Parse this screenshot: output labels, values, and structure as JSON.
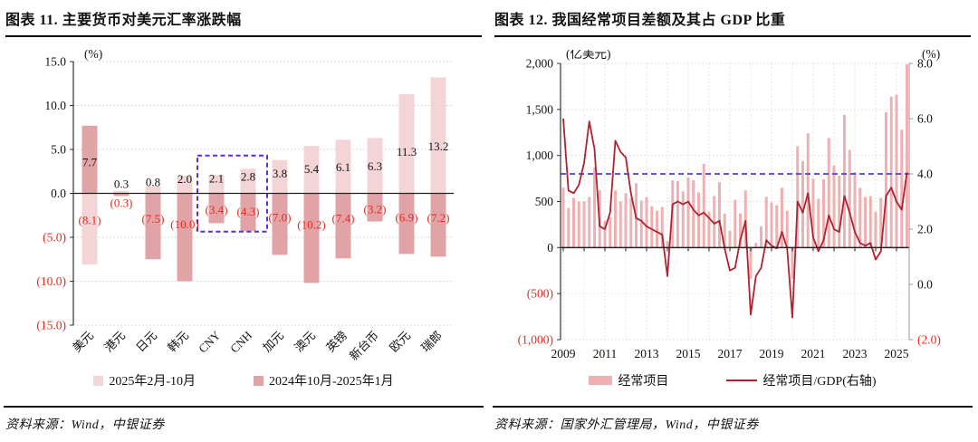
{
  "chart_data": [
    {
      "type": "bar",
      "title": "图表 11. 主要货币对美元汇率涨跌幅",
      "unit": "(%)",
      "categories": [
        "美元",
        "港元",
        "日元",
        "韩元",
        "CNY",
        "CNH",
        "加元",
        "澳元",
        "英镑",
        "新台币",
        "欧元",
        "瑞郎"
      ],
      "series": [
        {
          "name": "2025年2月-10月",
          "color": "#f4d5d7",
          "values": [
            -8.1,
            0.3,
            0.8,
            2.0,
            2.1,
            2.8,
            3.8,
            5.4,
            6.1,
            6.3,
            11.3,
            13.2
          ]
        },
        {
          "name": "2024年10月-2025年1月",
          "color": "#e2a3a7",
          "values": [
            7.7,
            -0.3,
            -7.5,
            -10.0,
            -3.4,
            -4.3,
            -7.0,
            -10.2,
            -7.4,
            -3.2,
            -6.9,
            -7.2
          ]
        }
      ],
      "ylim": [
        -15,
        15
      ],
      "yticks": [
        15,
        10,
        5,
        0,
        -5,
        -10,
        -15
      ],
      "ytick_labels": [
        "15.0",
        "10.0",
        "5.0",
        "0.0",
        "(5.0)",
        "(10.0)",
        "(15.0)"
      ],
      "grid": "horizontal-dotted",
      "legend_position": "bottom",
      "highlight_box": {
        "from_category": "CNY",
        "to_category": "CNH",
        "color": "#5b2ed6"
      },
      "colors": {
        "negative_text": "#e8281e",
        "axis": "#333333",
        "grid": "#dfc6c6"
      },
      "source": "资料来源：Wind，中银证券"
    },
    {
      "type": "bar+line",
      "title": "图表 12. 我国经常项目差额及其占 GDP 比重",
      "left_axis": {
        "unit": "(亿美元)",
        "lim": [
          -1000,
          2000
        ],
        "ticks": [
          2000,
          1500,
          1000,
          500,
          0,
          -500,
          -1000
        ],
        "tick_labels": [
          "2,000",
          "1,500",
          "1,000",
          "500",
          "0",
          "(500)",
          "(1,000)"
        ]
      },
      "right_axis": {
        "unit": "(%)",
        "lim": [
          -2,
          8
        ],
        "ticks": [
          8,
          6,
          4,
          2,
          0,
          -2
        ],
        "tick_labels": [
          "8.0",
          "6.0",
          "4.0",
          "2.0",
          "0.0",
          "(2.0)"
        ]
      },
      "x": {
        "start": "2009Q1",
        "freq": "quarterly",
        "tick_labels": [
          "2009",
          "2011",
          "2013",
          "2015",
          "2017",
          "2019",
          "2021",
          "2023",
          "2025"
        ]
      },
      "bars": {
        "name": "经常项目",
        "axis": "left",
        "color": "#efb0b3",
        "values": [
          650,
          430,
          540,
          500,
          500,
          550,
          870,
          620,
          290,
          330,
          620,
          500,
          590,
          540,
          700,
          510,
          550,
          450,
          400,
          440,
          70,
          730,
          720,
          610,
          760,
          730,
          600,
          910,
          390,
          560,
          710,
          370,
          180,
          520,
          370,
          620,
          -340,
          50,
          230,
          550,
          490,
          460,
          650,
          400,
          -340,
          1100,
          940,
          1240,
          750,
          530,
          740,
          1190,
          890,
          780,
          1440,
          1060,
          820,
          650,
          550,
          560,
          390,
          540,
          1470,
          1640,
          1660,
          1280,
          1990
        ]
      },
      "line": {
        "name": "经常项目/GDP(右轴)",
        "axis": "right",
        "color": "#b0222f",
        "values": [
          6.0,
          3.4,
          3.3,
          3.6,
          4.4,
          5.9,
          4.9,
          2.1,
          2.0,
          2.6,
          5.2,
          4.8,
          4.6,
          3.3,
          2.4,
          2.3,
          2.1,
          2.0,
          1.9,
          1.8,
          0.3,
          2.9,
          3.0,
          2.9,
          3.0,
          2.7,
          2.5,
          2.6,
          2.4,
          2.2,
          2.3,
          1.3,
          0.5,
          0.6,
          1.6,
          2.3,
          -1.1,
          0.3,
          0.6,
          1.6,
          1.4,
          1.3,
          1.9,
          1.3,
          -1.2,
          3.0,
          2.6,
          3.3,
          1.7,
          1.2,
          1.6,
          2.5,
          2.0,
          1.9,
          3.2,
          2.6,
          1.9,
          1.5,
          1.4,
          1.5,
          0.9,
          1.2,
          3.2,
          3.5,
          3.0,
          2.7,
          4.05
        ]
      },
      "reference_line": {
        "axis": "right",
        "value": 4.0,
        "color": "#4b3fd6",
        "style": "dashed"
      },
      "colors": {
        "negative_text": "#e8281e",
        "axis": "#333333",
        "grid": "#e9d6d6"
      },
      "source": "资料来源：国家外汇管理局，Wind，中银证券"
    }
  ]
}
